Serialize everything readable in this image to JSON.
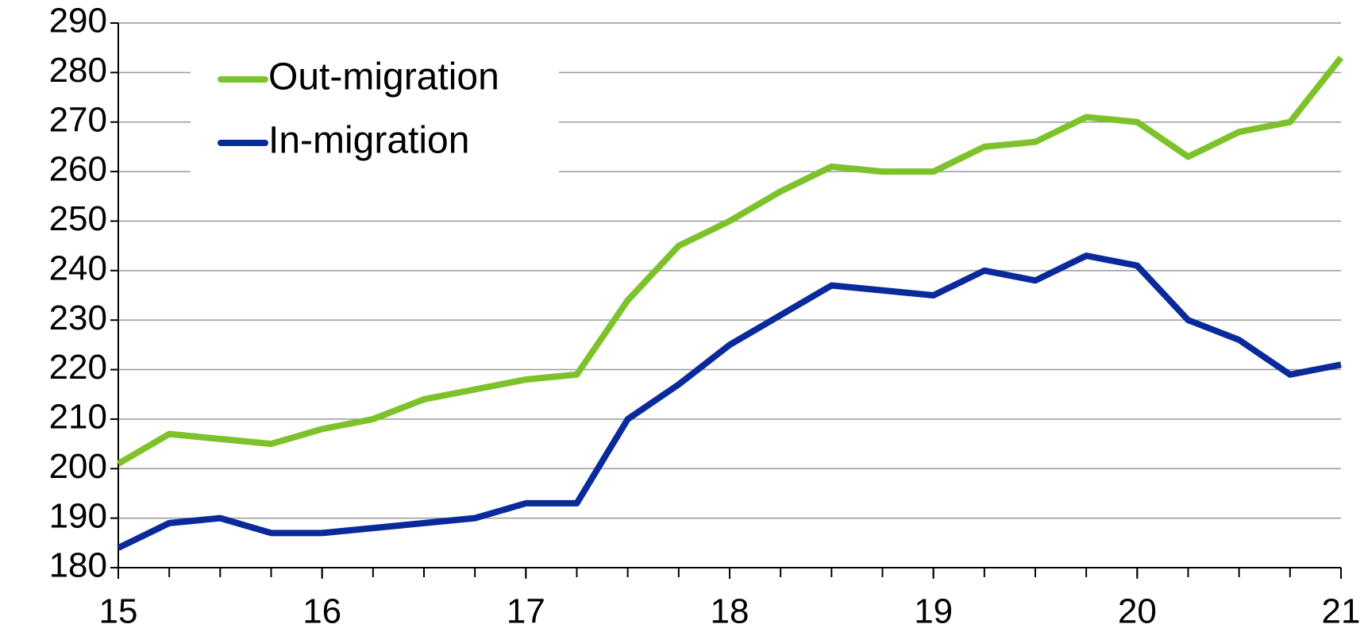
{
  "chart_data": {
    "type": "line",
    "x": [
      15,
      15.25,
      15.5,
      15.75,
      16,
      16.25,
      16.5,
      16.75,
      17,
      17.25,
      17.5,
      17.75,
      18,
      18.25,
      18.5,
      18.75,
      19,
      19.25,
      19.5,
      19.75,
      20,
      20.25,
      20.5,
      20.75,
      21
    ],
    "series": [
      {
        "name": "Out-migration",
        "color": "#7dc22a",
        "values": [
          201,
          207,
          206,
          205,
          208,
          210,
          214,
          216,
          218,
          219,
          234,
          245,
          250,
          256,
          261,
          260,
          260,
          265,
          266,
          271,
          270,
          263,
          268,
          270,
          283
        ]
      },
      {
        "name": "In-migration",
        "color": "#0a2a9c",
        "values": [
          184,
          189,
          190,
          187,
          187,
          188,
          189,
          190,
          193,
          193,
          210,
          217,
          225,
          231,
          237,
          236,
          235,
          240,
          238,
          243,
          241,
          230,
          226,
          219,
          221
        ]
      }
    ],
    "xlim": [
      15,
      21
    ],
    "xticks": [
      15,
      16,
      17,
      18,
      19,
      20,
      21
    ],
    "ylim": [
      180,
      290
    ],
    "yticks": [
      180,
      190,
      200,
      210,
      220,
      230,
      240,
      250,
      260,
      270,
      280,
      290
    ],
    "grid": true,
    "legend": "upper left"
  }
}
